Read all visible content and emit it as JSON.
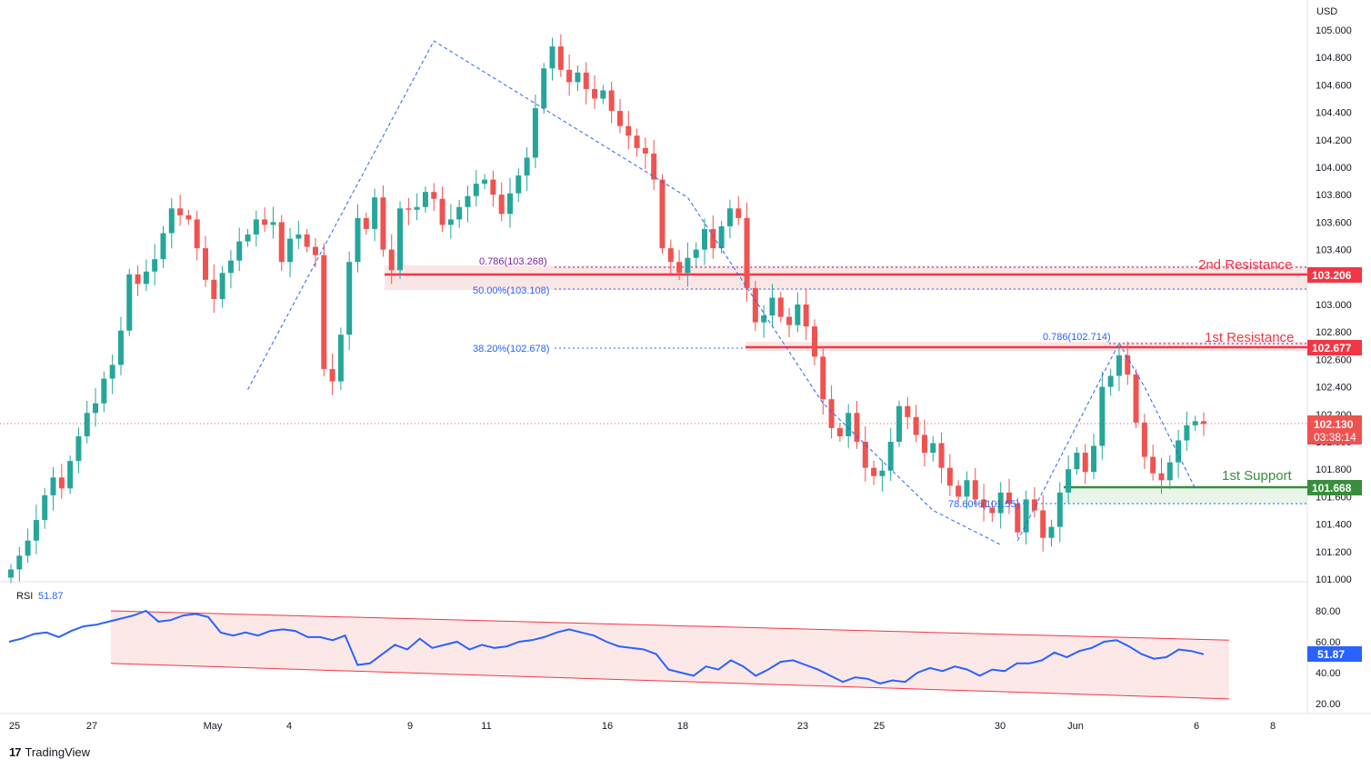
{
  "currency": "USD",
  "brand": {
    "logo": "17",
    "name": "TradingView"
  },
  "price_labels": {
    "second_resistance": "103.206",
    "first_resistance": "102.677",
    "current_price": "102.130",
    "countdown": "03:38:14",
    "first_support": "101.668"
  },
  "annotations": {
    "second_resistance": "2nd Resistance",
    "first_resistance": "1st Resistance",
    "first_support": "1st Support",
    "fib_0786_left": "0.786(103.268)",
    "fib_50": "50.00%(103.108)",
    "fib_382": "38.20%(102.678)",
    "fib_0786_right": "0.786(102.714)",
    "fib_786_support": "78.60%(101.55)"
  },
  "rsi": {
    "label": "RSI",
    "value": "51.87"
  },
  "colors": {
    "up": "#26a69a",
    "down": "#ef5350",
    "resistance": "#f23645",
    "support": "#388e3c",
    "fib": "#2962ff",
    "rsi_line": "#2962ff",
    "rsi_channel_fill": "#fde8e8"
  },
  "chart_data": [
    {
      "type": "candlestick",
      "title": "",
      "ylabel": "USD",
      "ylim": [
        101.0,
        105.0
      ],
      "x_ticks": [
        "25",
        "27",
        "May",
        "4",
        "9",
        "11",
        "16",
        "18",
        "23",
        "25",
        "30",
        "Jun",
        "6",
        "8"
      ],
      "y_ticks": [
        "105.000",
        "104.800",
        "104.600",
        "104.400",
        "104.200",
        "104.000",
        "103.800",
        "103.600",
        "103.400",
        "103.200",
        "103.000",
        "102.800",
        "102.600",
        "102.400",
        "102.200",
        "102.000",
        "101.800",
        "101.600",
        "101.400",
        "101.200",
        "101.000"
      ],
      "levels": [
        {
          "name": "2nd Resistance",
          "value": 103.206
        },
        {
          "name": "1st Resistance",
          "value": 102.677
        },
        {
          "name": "1st Support",
          "value": 101.668
        }
      ],
      "fibonacci": [
        103.268,
        103.108,
        102.678,
        102.714,
        101.55
      ],
      "close_path": [
        101.07,
        101.17,
        101.28,
        101.43,
        101.61,
        101.74,
        101.66,
        101.86,
        102.04,
        102.21,
        102.28,
        102.46,
        102.56,
        102.81,
        103.22,
        103.15,
        103.24,
        103.33,
        103.52,
        103.7,
        103.65,
        103.62,
        103.41,
        103.18,
        103.04,
        103.23,
        103.32,
        103.46,
        103.51,
        103.62,
        103.58,
        103.6,
        103.31,
        103.48,
        103.51,
        103.42,
        103.36,
        102.53,
        102.44,
        102.78,
        103.31,
        103.63,
        103.55,
        103.78,
        103.4,
        103.25,
        103.7,
        103.69,
        103.71,
        103.82,
        103.77,
        103.58,
        103.62,
        103.71,
        103.79,
        103.88,
        103.91,
        103.8,
        103.66,
        103.81,
        103.94,
        104.07,
        104.43,
        104.72,
        104.88,
        104.71,
        104.62,
        104.69,
        104.57,
        104.5,
        104.56,
        104.41,
        104.3,
        104.23,
        104.14,
        104.1,
        103.91,
        103.41,
        103.31,
        103.23,
        103.34,
        103.4,
        103.55,
        103.41,
        103.57,
        103.7,
        103.63,
        103.12,
        102.87,
        102.92,
        103.05,
        102.91,
        102.85,
        103.0,
        102.84,
        102.62,
        102.31,
        102.1,
        102.04,
        102.21,
        102.0,
        101.81,
        101.75,
        101.79,
        102.0,
        102.26,
        102.18,
        102.05,
        101.92,
        101.99,
        101.81,
        101.68,
        101.6,
        101.72,
        101.58,
        101.52,
        101.48,
        101.63,
        101.55,
        101.34,
        101.58,
        101.5,
        101.3,
        101.38,
        101.63,
        101.8,
        101.92,
        101.78,
        101.97,
        102.4,
        102.48,
        102.63,
        102.49,
        102.14,
        101.89,
        101.77,
        101.72,
        101.85,
        102.01,
        102.12,
        102.15,
        102.13
      ]
    },
    {
      "type": "line",
      "title": "RSI",
      "ylim": [
        20,
        80
      ],
      "y_ticks": [
        "80.00",
        "60.00",
        "40.00",
        "20.00"
      ],
      "series": [
        {
          "name": "RSI",
          "values": [
            60,
            62,
            65,
            66,
            63,
            67,
            70,
            71,
            73,
            75,
            77,
            80,
            73,
            74,
            77,
            78,
            76,
            66,
            64,
            66,
            64,
            67,
            68,
            67,
            63,
            63,
            61,
            64,
            45,
            46,
            52,
            58,
            55,
            62,
            56,
            58,
            60,
            55,
            58,
            56,
            57,
            60,
            61,
            63,
            66,
            68,
            66,
            64,
            60,
            57,
            56,
            55,
            52,
            42,
            40,
            38,
            44,
            42,
            48,
            44,
            38,
            42,
            47,
            48,
            45,
            42,
            38,
            34,
            37,
            36,
            33,
            35,
            34,
            40,
            43,
            41,
            44,
            42,
            38,
            42,
            41,
            46,
            46,
            48,
            53,
            50,
            54,
            56,
            60,
            61,
            57,
            52,
            49,
            50,
            55,
            54,
            51.87
          ]
        }
      ],
      "channel": {
        "upper": [
          80,
          61
        ],
        "lower": [
          46,
          23
        ]
      }
    }
  ]
}
